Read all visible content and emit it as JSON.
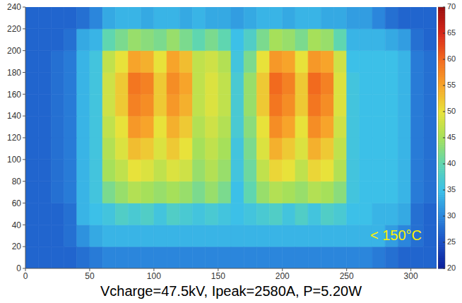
{
  "chart_data": {
    "type": "heatmap",
    "xlim": [
      0,
      320
    ],
    "xticks": [
      0,
      50,
      100,
      150,
      200,
      250,
      300
    ],
    "ylim": [
      0,
      240
    ],
    "yticks": [
      0,
      20,
      40,
      60,
      80,
      100,
      120,
      140,
      160,
      180,
      200,
      220,
      240
    ],
    "x_bins": [
      0,
      10,
      20,
      30,
      40,
      50,
      60,
      70,
      80,
      90,
      100,
      110,
      120,
      130,
      140,
      150,
      160,
      170,
      180,
      190,
      200,
      210,
      220,
      230,
      240,
      250,
      260,
      270,
      280,
      290,
      300,
      310,
      320
    ],
    "y_bins": [
      0,
      20,
      40,
      60,
      80,
      100,
      120,
      140,
      160,
      180,
      200,
      220,
      240
    ],
    "cells": [
      [
        27,
        27,
        27,
        27,
        28,
        29,
        30,
        30,
        30,
        30,
        30,
        30,
        30,
        30,
        30,
        30,
        30,
        30,
        30,
        30,
        30,
        30,
        30,
        30,
        30,
        30,
        30,
        29,
        28,
        27,
        27,
        27
      ],
      [
        27,
        27,
        27,
        28,
        31,
        33,
        34,
        34,
        34,
        34,
        34,
        34,
        34,
        34,
        34,
        34,
        34,
        34,
        34,
        34,
        34,
        34,
        34,
        34,
        34,
        34,
        34,
        34,
        32,
        30,
        28,
        27
      ],
      [
        27,
        27,
        27,
        28,
        34,
        35,
        36,
        38,
        37,
        38,
        36,
        38,
        37,
        36,
        37,
        36,
        35,
        36,
        37,
        38,
        36,
        38,
        36,
        38,
        37,
        35,
        35,
        34,
        34,
        33,
        28,
        27
      ],
      [
        27,
        27,
        28,
        29,
        34,
        36,
        42,
        44,
        46,
        45,
        44,
        45,
        44,
        42,
        44,
        42,
        35,
        40,
        44,
        46,
        45,
        44,
        46,
        45,
        43,
        36,
        35,
        35,
        35,
        34,
        29,
        28
      ],
      [
        27,
        27,
        28,
        29,
        34,
        36,
        45,
        47,
        50,
        49,
        47,
        49,
        48,
        44,
        46,
        44,
        36,
        41,
        47,
        51,
        50,
        47,
        51,
        50,
        46,
        36,
        35,
        35,
        35,
        34,
        29,
        28
      ],
      [
        27,
        27,
        28,
        29,
        34,
        36,
        46,
        49,
        53,
        52,
        49,
        52,
        50,
        45,
        47,
        45,
        36,
        42,
        49,
        54,
        52,
        49,
        54,
        52,
        47,
        36,
        35,
        35,
        35,
        34,
        29,
        28
      ],
      [
        27,
        27,
        28,
        29,
        34,
        36,
        47,
        50,
        56,
        55,
        50,
        54,
        52,
        46,
        48,
        46,
        37,
        43,
        50,
        57,
        55,
        50,
        57,
        55,
        48,
        36,
        35,
        35,
        35,
        34,
        29,
        28
      ],
      [
        27,
        27,
        28,
        29,
        34,
        36,
        48,
        52,
        58,
        57,
        52,
        56,
        54,
        47,
        49,
        47,
        37,
        44,
        52,
        59,
        57,
        52,
        59,
        57,
        49,
        36,
        35,
        35,
        35,
        34,
        29,
        28
      ],
      [
        27,
        27,
        28,
        29,
        34,
        36,
        48,
        52,
        59,
        58,
        52,
        57,
        55,
        47,
        49,
        47,
        37,
        44,
        52,
        60,
        58,
        52,
        60,
        58,
        49,
        36,
        35,
        35,
        35,
        34,
        29,
        28
      ],
      [
        27,
        27,
        28,
        29,
        34,
        36,
        47,
        50,
        55,
        54,
        50,
        55,
        53,
        47,
        48,
        46,
        36,
        42,
        50,
        56,
        55,
        50,
        56,
        55,
        48,
        35,
        35,
        35,
        35,
        34,
        29,
        28
      ],
      [
        27,
        27,
        27,
        28,
        33,
        34,
        40,
        42,
        44,
        43,
        42,
        44,
        42,
        40,
        42,
        40,
        35,
        38,
        42,
        45,
        44,
        42,
        45,
        44,
        40,
        34,
        34,
        34,
        33,
        32,
        28,
        27
      ],
      [
        27,
        27,
        27,
        27,
        28,
        30,
        33,
        34,
        34,
        33,
        34,
        34,
        33,
        34,
        33,
        33,
        32,
        33,
        34,
        34,
        33,
        34,
        34,
        33,
        33,
        32,
        32,
        30,
        28,
        27,
        27,
        27
      ]
    ],
    "colorbar": {
      "range": [
        20,
        70
      ],
      "ticks": [
        20,
        25,
        30,
        35,
        40,
        45,
        50,
        55,
        60,
        65,
        70
      ]
    },
    "annotations": [
      "< 150°C"
    ],
    "caption": "Vcharge=47.5kV, Ipeak=2580A, P=5.20W"
  }
}
